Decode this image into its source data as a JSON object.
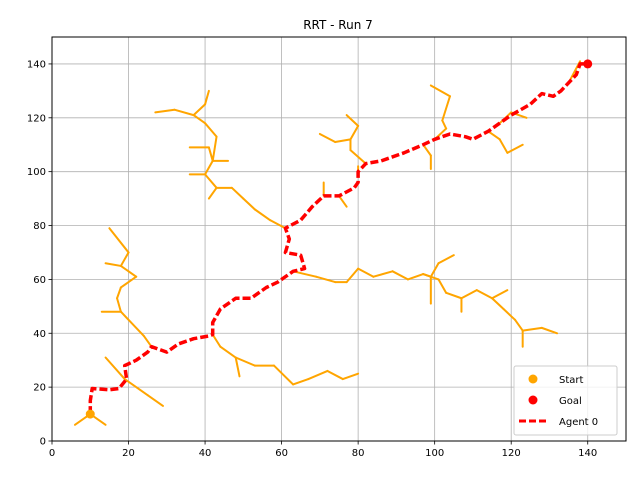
{
  "chart_data": {
    "type": "line",
    "title": "RRT - Run 7",
    "xlabel": "",
    "ylabel": "",
    "xlim": [
      0,
      150
    ],
    "ylim": [
      0,
      150
    ],
    "xticks": [
      0,
      20,
      40,
      60,
      80,
      100,
      120,
      140
    ],
    "yticks": [
      0,
      20,
      40,
      60,
      80,
      100,
      120,
      140
    ],
    "grid": true,
    "legend_position": "lower-right",
    "colors": {
      "tree": "#FFA500",
      "goal": "#FF0000",
      "path": "#FF0000",
      "grid": "#b0b0b0"
    },
    "start": {
      "name": "Start",
      "x": 10,
      "y": 10
    },
    "goal": {
      "name": "Goal",
      "x": 140,
      "y": 140
    },
    "path": {
      "name": "Agent 0",
      "points": [
        [
          10,
          10
        ],
        [
          10,
          15
        ],
        [
          10.5,
          19.5
        ],
        [
          15,
          19
        ],
        [
          17.5,
          19.5
        ],
        [
          19.5,
          23
        ],
        [
          19,
          28
        ],
        [
          22,
          30
        ],
        [
          25,
          33
        ],
        [
          26,
          35
        ],
        [
          30,
          33
        ],
        [
          33,
          36
        ],
        [
          37,
          38
        ],
        [
          41,
          39
        ],
        [
          42,
          39.5
        ],
        [
          42,
          44
        ],
        [
          44,
          49
        ],
        [
          48,
          53
        ],
        [
          52,
          53
        ],
        [
          56,
          57
        ],
        [
          59,
          59
        ],
        [
          63,
          63
        ],
        [
          66,
          64
        ],
        [
          65,
          69
        ],
        [
          61,
          70
        ],
        [
          62,
          75
        ],
        [
          61,
          79
        ],
        [
          65,
          82
        ],
        [
          68,
          87
        ],
        [
          71,
          91
        ],
        [
          75,
          91
        ],
        [
          79,
          94
        ],
        [
          80,
          96
        ],
        [
          80,
          100
        ],
        [
          82,
          103
        ],
        [
          86,
          104
        ],
        [
          92,
          107
        ],
        [
          97,
          110
        ],
        [
          100,
          112
        ],
        [
          104,
          114
        ],
        [
          108,
          113
        ],
        [
          110,
          112
        ],
        [
          114,
          115
        ],
        [
          117,
          118
        ],
        [
          120,
          121
        ],
        [
          125,
          125
        ],
        [
          128,
          129
        ],
        [
          131,
          128
        ],
        [
          133,
          130
        ],
        [
          135,
          133
        ],
        [
          137,
          136
        ],
        [
          138,
          140
        ],
        [
          140,
          140
        ]
      ]
    },
    "tree_edges": [
      [
        [
          10,
          10
        ],
        [
          6,
          6
        ]
      ],
      [
        [
          10,
          10
        ],
        [
          14,
          6
        ]
      ],
      [
        [
          10,
          10
        ],
        [
          9,
          9
        ]
      ],
      [
        [
          19,
          23
        ],
        [
          25,
          17
        ]
      ],
      [
        [
          25,
          17
        ],
        [
          29,
          13
        ]
      ],
      [
        [
          19,
          23
        ],
        [
          14,
          31
        ]
      ],
      [
        [
          26,
          35
        ],
        [
          24,
          39
        ]
      ],
      [
        [
          24,
          39
        ],
        [
          18,
          48
        ]
      ],
      [
        [
          18,
          48
        ],
        [
          13,
          48
        ]
      ],
      [
        [
          18,
          48
        ],
        [
          17,
          53
        ]
      ],
      [
        [
          17,
          53
        ],
        [
          18,
          57
        ]
      ],
      [
        [
          18,
          57
        ],
        [
          22,
          61
        ]
      ],
      [
        [
          22,
          61
        ],
        [
          18,
          65
        ]
      ],
      [
        [
          18,
          65
        ],
        [
          14,
          66
        ]
      ],
      [
        [
          18,
          65
        ],
        [
          20,
          70
        ]
      ],
      [
        [
          20,
          70
        ],
        [
          15,
          79
        ]
      ],
      [
        [
          42,
          39.5
        ],
        [
          44,
          35
        ]
      ],
      [
        [
          44,
          35
        ],
        [
          48,
          31
        ]
      ],
      [
        [
          48,
          31
        ],
        [
          53,
          28
        ]
      ],
      [
        [
          53,
          28
        ],
        [
          58,
          28
        ]
      ],
      [
        [
          58,
          28
        ],
        [
          63,
          21
        ]
      ],
      [
        [
          63,
          21
        ],
        [
          67,
          23
        ]
      ],
      [
        [
          67,
          23
        ],
        [
          72,
          26
        ]
      ],
      [
        [
          72,
          26
        ],
        [
          76,
          23
        ]
      ],
      [
        [
          76,
          23
        ],
        [
          80,
          25
        ]
      ],
      [
        [
          48,
          31
        ],
        [
          49,
          24
        ]
      ],
      [
        [
          63,
          63
        ],
        [
          69,
          61
        ]
      ],
      [
        [
          69,
          61
        ],
        [
          74,
          59
        ]
      ],
      [
        [
          74,
          59
        ],
        [
          77,
          59
        ]
      ],
      [
        [
          77,
          59
        ],
        [
          80,
          64
        ]
      ],
      [
        [
          80,
          64
        ],
        [
          84,
          61
        ]
      ],
      [
        [
          84,
          61
        ],
        [
          89,
          63
        ]
      ],
      [
        [
          89,
          63
        ],
        [
          93,
          60
        ]
      ],
      [
        [
          93,
          60
        ],
        [
          97,
          62
        ]
      ],
      [
        [
          97,
          62
        ],
        [
          99,
          61
        ]
      ],
      [
        [
          99,
          61
        ],
        [
          101,
          66
        ]
      ],
      [
        [
          101,
          66
        ],
        [
          105,
          69
        ]
      ],
      [
        [
          99,
          61
        ],
        [
          99,
          51
        ]
      ],
      [
        [
          97,
          62
        ],
        [
          101,
          60
        ]
      ],
      [
        [
          101,
          60
        ],
        [
          103,
          55
        ]
      ],
      [
        [
          103,
          55
        ],
        [
          107,
          53
        ]
      ],
      [
        [
          107,
          53
        ],
        [
          107,
          48
        ]
      ],
      [
        [
          107,
          53
        ],
        [
          111,
          56
        ]
      ],
      [
        [
          111,
          56
        ],
        [
          115,
          53
        ]
      ],
      [
        [
          115,
          53
        ],
        [
          119,
          56
        ]
      ],
      [
        [
          115,
          53
        ],
        [
          118,
          49
        ]
      ],
      [
        [
          118,
          49
        ],
        [
          121,
          45
        ]
      ],
      [
        [
          121,
          45
        ],
        [
          123,
          41
        ]
      ],
      [
        [
          123,
          41
        ],
        [
          123,
          35
        ]
      ],
      [
        [
          123,
          41
        ],
        [
          128,
          42
        ]
      ],
      [
        [
          128,
          42
        ],
        [
          132,
          40
        ]
      ],
      [
        [
          61,
          79
        ],
        [
          57,
          82
        ]
      ],
      [
        [
          57,
          82
        ],
        [
          53,
          86
        ]
      ],
      [
        [
          53,
          86
        ],
        [
          50,
          90
        ]
      ],
      [
        [
          50,
          90
        ],
        [
          47,
          94
        ]
      ],
      [
        [
          47,
          94
        ],
        [
          43,
          94
        ]
      ],
      [
        [
          43,
          94
        ],
        [
          41,
          90
        ]
      ],
      [
        [
          43,
          94
        ],
        [
          40,
          99
        ]
      ],
      [
        [
          40,
          99
        ],
        [
          36,
          99
        ]
      ],
      [
        [
          40,
          99
        ],
        [
          42,
          104
        ]
      ],
      [
        [
          42,
          104
        ],
        [
          46,
          104
        ]
      ],
      [
        [
          42,
          104
        ],
        [
          41,
          109
        ]
      ],
      [
        [
          41,
          109
        ],
        [
          36,
          109
        ]
      ],
      [
        [
          42,
          104
        ],
        [
          43,
          113
        ]
      ],
      [
        [
          43,
          113
        ],
        [
          40,
          118
        ]
      ],
      [
        [
          40,
          118
        ],
        [
          37,
          121
        ]
      ],
      [
        [
          37,
          121
        ],
        [
          32,
          123
        ]
      ],
      [
        [
          32,
          123
        ],
        [
          27,
          122
        ]
      ],
      [
        [
          37,
          121
        ],
        [
          40,
          125
        ]
      ],
      [
        [
          40,
          125
        ],
        [
          41,
          130
        ]
      ],
      [
        [
          71,
          91
        ],
        [
          71,
          96
        ]
      ],
      [
        [
          75,
          91
        ],
        [
          77,
          87
        ]
      ],
      [
        [
          80,
          100
        ],
        [
          80,
          102
        ]
      ],
      [
        [
          82,
          103
        ],
        [
          78,
          108
        ]
      ],
      [
        [
          78,
          108
        ],
        [
          78,
          112
        ]
      ],
      [
        [
          78,
          112
        ],
        [
          74,
          111
        ]
      ],
      [
        [
          74,
          111
        ],
        [
          70,
          114
        ]
      ],
      [
        [
          78,
          112
        ],
        [
          80,
          117
        ]
      ],
      [
        [
          80,
          117
        ],
        [
          77,
          121
        ]
      ],
      [
        [
          97,
          110
        ],
        [
          99,
          106
        ]
      ],
      [
        [
          99,
          106
        ],
        [
          99,
          101
        ]
      ],
      [
        [
          100,
          112
        ],
        [
          103,
          116
        ]
      ],
      [
        [
          103,
          116
        ],
        [
          102,
          119
        ]
      ],
      [
        [
          102,
          119
        ],
        [
          104,
          128
        ]
      ],
      [
        [
          104,
          128
        ],
        [
          99,
          132
        ]
      ],
      [
        [
          114,
          115
        ],
        [
          117,
          112
        ]
      ],
      [
        [
          117,
          112
        ],
        [
          119,
          107
        ]
      ],
      [
        [
          119,
          107
        ],
        [
          123,
          110
        ]
      ],
      [
        [
          117,
          118
        ],
        [
          120,
          122
        ]
      ],
      [
        [
          120,
          122
        ],
        [
          124,
          120
        ]
      ],
      [
        [
          135,
          133
        ],
        [
          138,
          141
        ]
      ]
    ]
  }
}
